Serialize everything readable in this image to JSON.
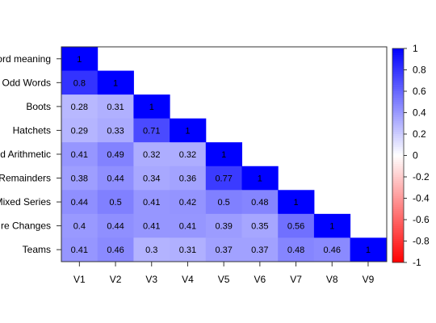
{
  "chart_data": {
    "type": "heatmap",
    "layout": "lower-triangular correlation matrix",
    "row_labels": [
      "Word meaning",
      "Odd Words",
      "Boots",
      "Hatchets",
      "Mixed Arithmetic",
      "Remainders",
      "Mixed Series",
      "Figure Changes",
      "Teams"
    ],
    "visible_row_labels": [
      "ord meaning",
      "Odd Words",
      "Boots",
      "Hatchets",
      "d Arithmetic",
      "Remainders",
      "Mixed Series",
      "re Changes",
      "Teams"
    ],
    "col_labels": [
      "V1",
      "V2",
      "V3",
      "V4",
      "V5",
      "V6",
      "V7",
      "V8",
      "V9"
    ],
    "matrix": [
      [
        1
      ],
      [
        0.8,
        1
      ],
      [
        0.28,
        0.31,
        1
      ],
      [
        0.29,
        0.33,
        0.71,
        1
      ],
      [
        0.41,
        0.49,
        0.32,
        0.32,
        1
      ],
      [
        0.38,
        0.44,
        0.34,
        0.36,
        0.77,
        1
      ],
      [
        0.44,
        0.5,
        0.41,
        0.42,
        0.5,
        0.48,
        1
      ],
      [
        0.4,
        0.44,
        0.41,
        0.41,
        0.39,
        0.35,
        0.56,
        1
      ],
      [
        0.41,
        0.46,
        0.3,
        0.31,
        0.37,
        0.37,
        0.48,
        0.46,
        1
      ]
    ],
    "value_range": [
      -1,
      1
    ],
    "colorbar": {
      "ticks": [
        1,
        0.8,
        0.6,
        0.4,
        0.2,
        0,
        -0.2,
        -0.4,
        -0.6,
        -0.8,
        -1
      ],
      "colors": {
        "negative": "#ff0000",
        "zero": "#ffffff",
        "positive": "#0000ff"
      }
    },
    "title": "",
    "xlabel": "",
    "ylabel": ""
  }
}
